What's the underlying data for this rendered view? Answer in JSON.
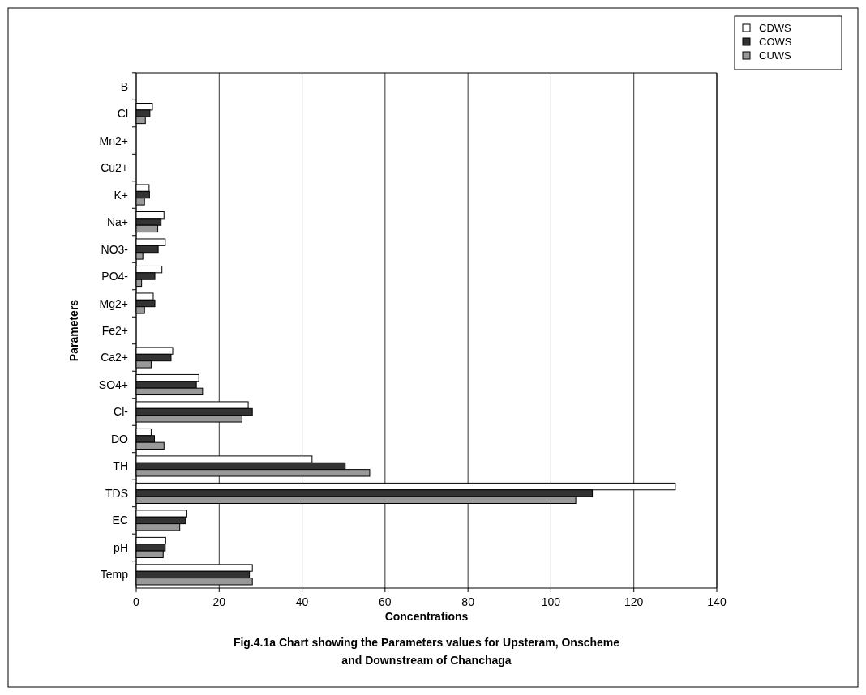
{
  "chart_data": {
    "type": "bar",
    "orientation": "horizontal",
    "title": "Fig.4.1a Chart showing the Parameters values for Upsteram, Onscheme and Downstream of Chanchaga",
    "xlabel": "Concentrations",
    "ylabel": "Parameters",
    "categories": [
      "B",
      "Cl",
      "Mn2+",
      "Cu2+",
      "K+",
      "Na+",
      "NO3-",
      "PO4-",
      "Mg2+",
      "Fe2+",
      "Ca2+",
      "SO4+",
      "Cl-",
      "DO",
      "TH",
      "TDS",
      "EC",
      "pH",
      "Temp"
    ],
    "series": [
      {
        "name": "CDWS",
        "color": "#ffffff",
        "values": [
          0,
          3.9,
          0,
          0,
          3.1,
          6.7,
          7,
          6.2,
          4.1,
          0,
          8.8,
          15.1,
          27,
          3.6,
          42.4,
          130,
          12.2,
          7.1,
          28
        ]
      },
      {
        "name": "COWS",
        "color": "#333333",
        "values": [
          0,
          3.3,
          0,
          0,
          3.2,
          6,
          5.3,
          4.5,
          4.5,
          0,
          8.4,
          14.5,
          28,
          4.4,
          50.4,
          110,
          11.9,
          7,
          27.3
        ]
      },
      {
        "name": "CUWS",
        "color": "#999999",
        "values": [
          0,
          2.2,
          0,
          0,
          2,
          5.2,
          1.6,
          1.3,
          2,
          0,
          3.6,
          16,
          25.5,
          6.7,
          56.3,
          106,
          10.5,
          6.5,
          28
        ]
      }
    ],
    "xlim": [
      0,
      140
    ],
    "xticks": [
      0,
      20,
      40,
      60,
      80,
      100,
      120,
      140
    ],
    "grid": "x",
    "legend": "top right"
  }
}
